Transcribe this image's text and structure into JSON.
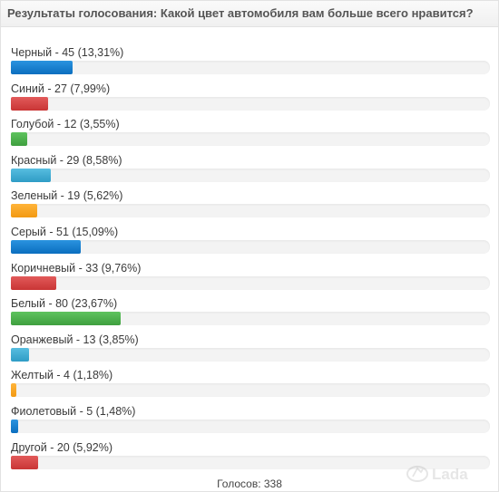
{
  "poll": {
    "title": "Результаты голосования: Какой цвет автомобиля вам больше всего нравится?",
    "colors": {
      "blue": "#0b6ebf",
      "red": "#c93535",
      "green": "#3f9f3f",
      "cyan": "#2f9cc5",
      "orange": "#f29912"
    },
    "items": [
      {
        "label": "Черный - 45 (13,31%)",
        "percent": 13.31,
        "color": "blue"
      },
      {
        "label": "Синий - 27 (7,99%)",
        "percent": 7.99,
        "color": "red"
      },
      {
        "label": "Голубой - 12 (3,55%)",
        "percent": 3.55,
        "color": "green"
      },
      {
        "label": "Красный - 29 (8,58%)",
        "percent": 8.58,
        "color": "cyan"
      },
      {
        "label": "Зеленый - 19 (5,62%)",
        "percent": 5.62,
        "color": "orange"
      },
      {
        "label": "Серый - 51 (15,09%)",
        "percent": 15.09,
        "color": "blue"
      },
      {
        "label": "Коричневый - 33 (9,76%)",
        "percent": 9.76,
        "color": "red"
      },
      {
        "label": "Белый - 80 (23,67%)",
        "percent": 23.67,
        "color": "green"
      },
      {
        "label": "Оранжевый - 13 (3,85%)",
        "percent": 3.85,
        "color": "cyan"
      },
      {
        "label": "Желтый - 4 (1,18%)",
        "percent": 1.18,
        "color": "orange"
      },
      {
        "label": "Фиолетовый - 5 (1,48%)",
        "percent": 1.48,
        "color": "blue"
      },
      {
        "label": "Другой - 20 (5,92%)",
        "percent": 5.92,
        "color": "red"
      }
    ],
    "total_label": "Голосов: 338"
  },
  "watermark": {
    "icon": "lada-logo-icon",
    "text": "Lada"
  }
}
